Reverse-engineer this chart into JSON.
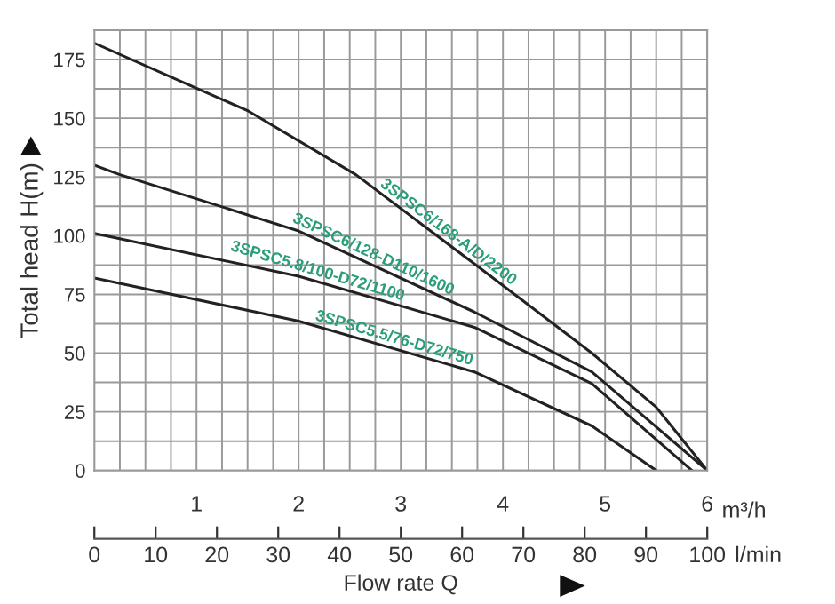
{
  "chart_data": {
    "type": "line",
    "xlabel": "m³/h",
    "ylabel": "Total head H(m)",
    "x2label": "Flow rate Q",
    "annotations": [
      "l/min"
    ],
    "xlim": [
      0,
      6
    ],
    "xticks": [
      {
        "value": 0,
        "label": null
      },
      {
        "value": 0.25,
        "label": null
      },
      {
        "value": 0.5,
        "label": null
      },
      {
        "value": 0.75,
        "label": null
      },
      1,
      {
        "value": 1.25,
        "label": null
      },
      {
        "value": 1.5,
        "label": null
      },
      {
        "value": 1.75,
        "label": null
      },
      2,
      {
        "value": 2.25,
        "label": null
      },
      {
        "value": 2.5,
        "label": null
      },
      {
        "value": 2.75,
        "label": null
      },
      3,
      {
        "value": 3.25,
        "label": null
      },
      {
        "value": 3.5,
        "label": null
      },
      {
        "value": 3.75,
        "label": null
      },
      4,
      {
        "value": 4.25,
        "label": null
      },
      {
        "value": 4.5,
        "label": null
      },
      {
        "value": 4.75,
        "label": null
      },
      5,
      {
        "value": 5.25,
        "label": null
      },
      {
        "value": 5.5,
        "label": null
      },
      {
        "value": 5.75,
        "label": null
      },
      6
    ],
    "ylim": [
      0,
      187.5
    ],
    "yticks": [
      0,
      {
        "value": 12.5,
        "label": null
      },
      25,
      {
        "value": 37.5,
        "label": null
      },
      50,
      {
        "value": 62.5,
        "label": null
      },
      75,
      {
        "value": 87.5,
        "label": null
      },
      100,
      {
        "value": 112.5,
        "label": null
      },
      125,
      {
        "value": 137.5,
        "label": null
      },
      150,
      {
        "value": 162.5,
        "label": null
      },
      175,
      {
        "value": 187.5,
        "label": null
      }
    ],
    "x2lim": [
      0,
      100
    ],
    "x2ticks": [
      0,
      10,
      20,
      30,
      40,
      50,
      60,
      70,
      80,
      90,
      100
    ],
    "grid": true,
    "marker": "none",
    "line_style": "solid",
    "series": [
      {
        "name": "3SPSC6/168-A/D/2200",
        "color": "#222222",
        "x": [
          0,
          0.99,
          1.51,
          2.56,
          3.72,
          4.87,
          5.5,
          6
        ],
        "values": [
          182,
          163,
          153,
          126,
          88,
          50,
          27,
          0
        ]
      },
      {
        "name": "3SPSC6/128-D110/1600",
        "color": "#222222",
        "x": [
          0,
          0.25,
          2,
          3.72,
          4.87,
          6
        ],
        "values": [
          130,
          126,
          102,
          67.5,
          42,
          0
        ]
      },
      {
        "name": "3SPSC5.8/100-D72/1100",
        "color": "#222222",
        "x": [
          0,
          2,
          3.72,
          4.87,
          5.85
        ],
        "values": [
          101,
          82.7,
          61,
          37,
          0
        ]
      },
      {
        "name": "3SPSC5.5/76-D72/750",
        "color": "#222222",
        "x": [
          0,
          2,
          3.72,
          4.87,
          5.5
        ],
        "values": [
          82,
          63.6,
          42,
          19,
          0
        ]
      }
    ]
  }
}
